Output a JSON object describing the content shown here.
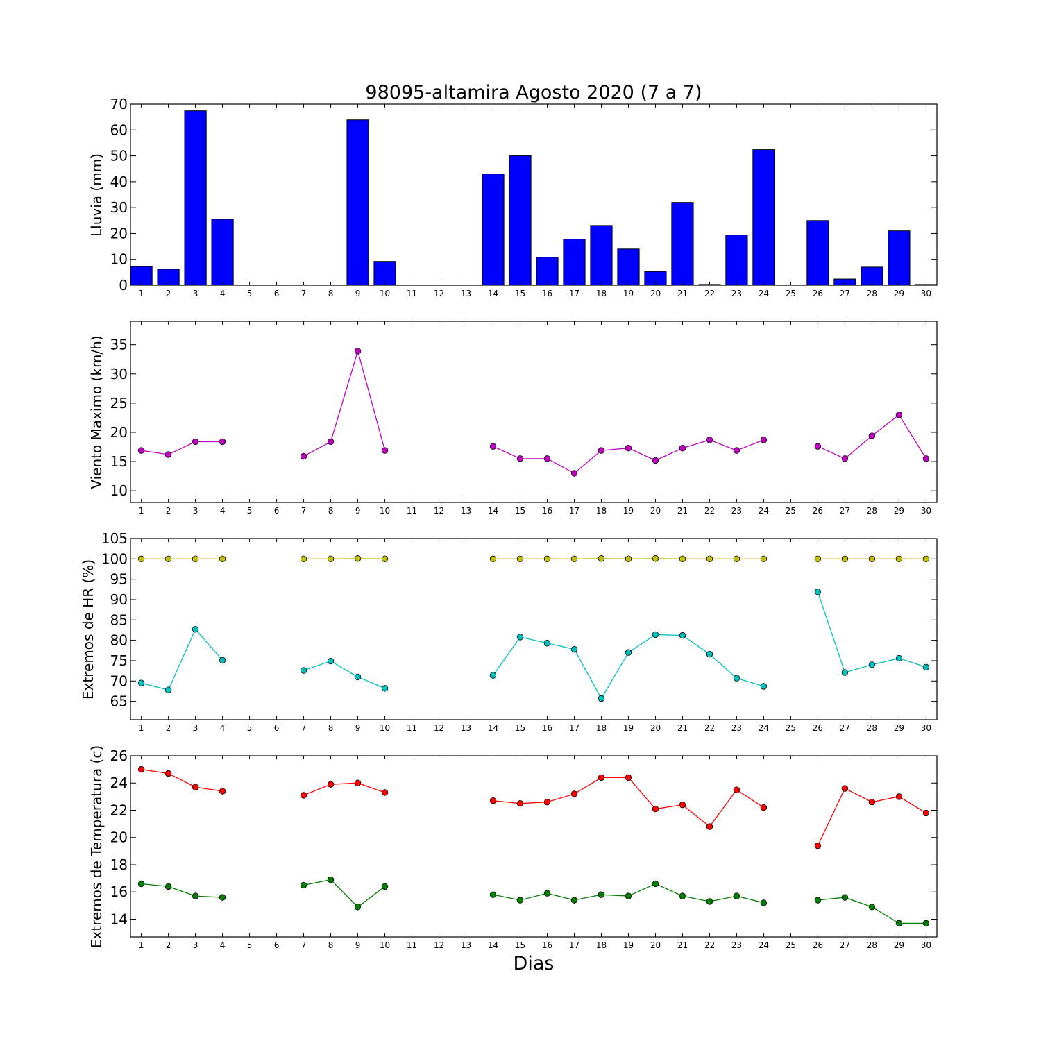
{
  "figure": {
    "title": "98095-altamira Agosto 2020  (7 a 7)",
    "xlabel": "Dias",
    "colors": {
      "lluvia": "#0000ff",
      "viento": "#bf00bf",
      "hr_max": "#bfbf00",
      "hr_min": "#00bfbf",
      "temp_max": "#ff0000",
      "temp_min": "#008000"
    }
  },
  "chart_data": [
    {
      "type": "bar",
      "title": "98095-altamira Agosto 2020  (7 a 7)",
      "xlabel": "",
      "ylabel": "Lluvia (mm)",
      "categories": [
        1,
        2,
        3,
        4,
        5,
        6,
        7,
        8,
        9,
        10,
        11,
        12,
        13,
        14,
        15,
        16,
        17,
        18,
        19,
        20,
        21,
        22,
        23,
        24,
        25,
        26,
        27,
        28,
        29,
        30
      ],
      "values": [
        7.2,
        6.2,
        67.4,
        25.5,
        0,
        0,
        0.1,
        0,
        63.9,
        9.2,
        0,
        0,
        0,
        43.0,
        50.0,
        10.8,
        17.8,
        23.1,
        14.0,
        5.3,
        32.0,
        0.3,
        19.4,
        52.4,
        0,
        25.0,
        2.4,
        7.0,
        21.0,
        0.3
      ],
      "ylim": [
        0,
        70
      ],
      "yticks": [
        0,
        10,
        20,
        30,
        40,
        50,
        60,
        70
      ],
      "grid": false
    },
    {
      "type": "line",
      "ylabel": "Viento Maximo (km/h)",
      "x": [
        1,
        2,
        3,
        4,
        5,
        6,
        7,
        8,
        9,
        10,
        11,
        12,
        13,
        14,
        15,
        16,
        17,
        18,
        19,
        20,
        21,
        22,
        23,
        24,
        25,
        26,
        27,
        28,
        29,
        30
      ],
      "series": [
        {
          "values": [
            16.9,
            16.2,
            18.4,
            18.4,
            null,
            null,
            15.9,
            18.4,
            33.9,
            16.9,
            null,
            null,
            null,
            17.6,
            15.5,
            15.5,
            13.0,
            16.9,
            17.3,
            15.2,
            17.3,
            18.7,
            16.9,
            18.7,
            null,
            17.6,
            15.5,
            19.4,
            23.0,
            15.5
          ]
        }
      ],
      "ylim": [
        8,
        39
      ],
      "yticks": [
        10,
        15,
        20,
        25,
        30,
        35
      ],
      "grid": false
    },
    {
      "type": "line",
      "ylabel": "Extremos de HR (%)",
      "x": [
        1,
        2,
        3,
        4,
        5,
        6,
        7,
        8,
        9,
        10,
        11,
        12,
        13,
        14,
        15,
        16,
        17,
        18,
        19,
        20,
        21,
        22,
        23,
        24,
        25,
        26,
        27,
        28,
        29,
        30
      ],
      "series": [
        {
          "values": [
            100,
            100,
            100,
            100,
            null,
            null,
            100,
            100,
            100.1,
            100,
            null,
            null,
            null,
            100,
            100,
            100,
            100,
            100.1,
            100,
            100.1,
            100,
            100,
            100,
            100,
            null,
            100,
            100,
            100,
            100,
            100
          ]
        },
        {
          "values": [
            69.5,
            67.8,
            82.7,
            75.1,
            null,
            null,
            72.6,
            74.9,
            71.0,
            68.2,
            null,
            null,
            null,
            71.4,
            80.8,
            79.3,
            77.8,
            65.7,
            77.0,
            81.4,
            81.2,
            76.6,
            70.7,
            68.7,
            null,
            91.9,
            72.1,
            74.0,
            75.6,
            73.4
          ]
        }
      ],
      "ylim": [
        60.5,
        105
      ],
      "yticks": [
        65,
        70,
        75,
        80,
        85,
        90,
        95,
        100,
        105
      ],
      "grid": false
    },
    {
      "type": "line",
      "ylabel": "Extremos de Temperatura (c)",
      "x": [
        1,
        2,
        3,
        4,
        5,
        6,
        7,
        8,
        9,
        10,
        11,
        12,
        13,
        14,
        15,
        16,
        17,
        18,
        19,
        20,
        21,
        22,
        23,
        24,
        25,
        26,
        27,
        28,
        29,
        30
      ],
      "series": [
        {
          "values": [
            25.0,
            24.7,
            23.7,
            23.4,
            null,
            null,
            23.1,
            23.9,
            24.0,
            23.3,
            null,
            null,
            null,
            22.7,
            22.5,
            22.6,
            23.2,
            24.4,
            24.4,
            22.1,
            22.4,
            20.8,
            23.5,
            22.2,
            null,
            19.4,
            23.6,
            22.6,
            23.0,
            21.8
          ]
        },
        {
          "values": [
            16.6,
            16.4,
            15.7,
            15.6,
            null,
            null,
            16.5,
            16.9,
            14.9,
            16.4,
            null,
            null,
            null,
            15.8,
            15.4,
            15.9,
            15.4,
            15.8,
            15.7,
            16.6,
            15.7,
            15.3,
            15.7,
            15.2,
            null,
            15.4,
            15.6,
            14.9,
            13.7,
            13.7
          ]
        }
      ],
      "ylim": [
        12.7,
        26
      ],
      "yticks": [
        14,
        16,
        18,
        20,
        22,
        24,
        26
      ],
      "grid": false
    }
  ]
}
